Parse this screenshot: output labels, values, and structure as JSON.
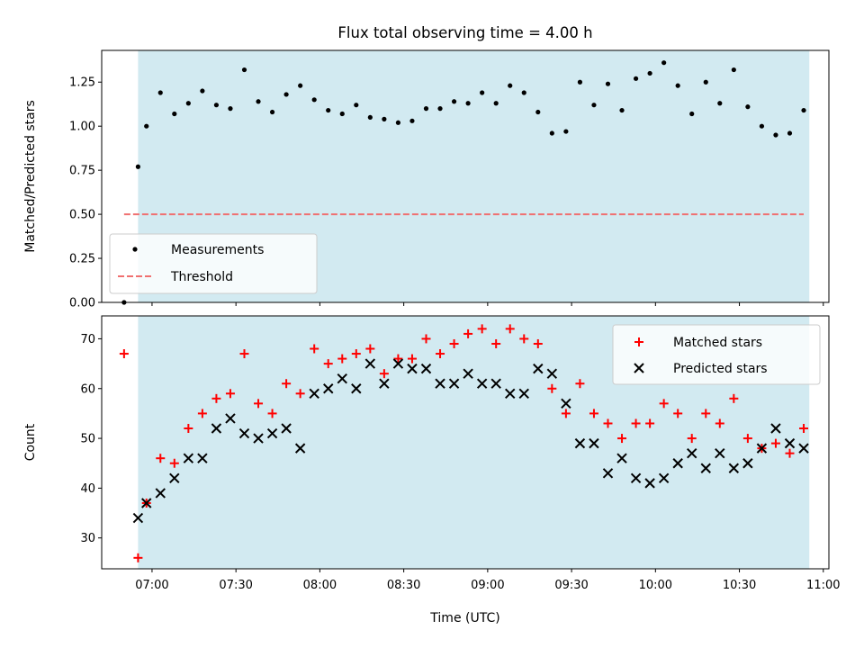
{
  "chart_data": [
    {
      "type": "scatter",
      "title": "Flux total observing time = 4.00 h",
      "ylabel": "Matched/Predicted stars",
      "xlabel": "",
      "x_unit": "hours (UTC)",
      "xlim": [
        "06:42",
        "11:02"
      ],
      "ylim": [
        0,
        1.43
      ],
      "y_ticks": [
        0,
        0.25,
        0.5,
        0.75,
        1.0,
        1.25
      ],
      "y_tick_labels": [
        "0.00",
        "0.25",
        "0.50",
        "0.75",
        "1.00",
        "1.25"
      ],
      "shaded_interval": [
        "06:55",
        "10:55"
      ],
      "shade_color": "#add8e6",
      "legend_position": "lower left",
      "series": [
        {
          "name": "Measurements",
          "marker": "dot",
          "color": "#000000",
          "x": [
            "06:50",
            "06:55",
            "06:58",
            "07:03",
            "07:08",
            "07:13",
            "07:18",
            "07:23",
            "07:28",
            "07:33",
            "07:38",
            "07:43",
            "07:48",
            "07:53",
            "07:58",
            "08:03",
            "08:08",
            "08:13",
            "08:18",
            "08:23",
            "08:28",
            "08:33",
            "08:38",
            "08:43",
            "08:48",
            "08:53",
            "08:58",
            "09:03",
            "09:08",
            "09:13",
            "09:18",
            "09:23",
            "09:28",
            "09:33",
            "09:38",
            "09:43",
            "09:48",
            "09:53",
            "09:58",
            "10:03",
            "10:08",
            "10:13",
            "10:18",
            "10:23",
            "10:28",
            "10:33",
            "10:38",
            "10:43",
            "10:48",
            "10:53"
          ],
          "y": [
            0.0,
            0.77,
            1.0,
            1.19,
            1.07,
            1.13,
            1.2,
            1.12,
            1.1,
            1.32,
            1.14,
            1.08,
            1.18,
            1.23,
            1.15,
            1.09,
            1.07,
            1.12,
            1.05,
            1.04,
            1.02,
            1.03,
            1.1,
            1.1,
            1.14,
            1.13,
            1.19,
            1.13,
            1.23,
            1.19,
            1.08,
            0.96,
            0.97,
            1.25,
            1.12,
            1.24,
            1.09,
            1.27,
            1.3,
            1.36,
            1.23,
            1.07,
            1.25,
            1.13,
            1.32,
            1.11,
            1.0,
            0.95,
            0.96,
            1.09
          ]
        },
        {
          "name": "Threshold",
          "style": "dashed",
          "color": "#f07070",
          "x": [
            "06:50",
            "10:53"
          ],
          "y": [
            0.5,
            0.5
          ]
        }
      ]
    },
    {
      "type": "scatter",
      "title": "",
      "ylabel": "Count",
      "xlabel": "Time (UTC)",
      "xlim": [
        "06:42",
        "11:02"
      ],
      "ylim": [
        23.8,
        74.6
      ],
      "y_ticks": [
        30,
        40,
        50,
        60,
        70
      ],
      "x_ticks": [
        "07:00",
        "07:30",
        "08:00",
        "08:30",
        "09:00",
        "09:30",
        "10:00",
        "10:30",
        "11:00"
      ],
      "shaded_interval": [
        "06:55",
        "10:55"
      ],
      "shade_color": "#add8e6",
      "legend_position": "upper right",
      "series": [
        {
          "name": "Matched stars",
          "marker": "plus",
          "color": "#ff0000",
          "x": [
            "06:50",
            "06:55",
            "06:58",
            "07:03",
            "07:08",
            "07:13",
            "07:18",
            "07:23",
            "07:28",
            "07:33",
            "07:38",
            "07:43",
            "07:48",
            "07:53",
            "07:58",
            "08:03",
            "08:08",
            "08:13",
            "08:18",
            "08:23",
            "08:28",
            "08:33",
            "08:38",
            "08:43",
            "08:48",
            "08:53",
            "08:58",
            "09:03",
            "09:08",
            "09:13",
            "09:18",
            "09:23",
            "09:28",
            "09:33",
            "09:38",
            "09:43",
            "09:48",
            "09:53",
            "09:58",
            "10:03",
            "10:08",
            "10:13",
            "10:18",
            "10:23",
            "10:28",
            "10:33",
            "10:38",
            "10:43",
            "10:48",
            "10:53"
          ],
          "y": [
            67,
            26,
            37,
            46,
            45,
            52,
            55,
            58,
            59,
            67,
            57,
            55,
            61,
            59,
            68,
            65,
            66,
            67,
            68,
            63,
            66,
            66,
            70,
            67,
            69,
            71,
            72,
            69,
            72,
            70,
            69,
            60,
            55,
            61,
            55,
            53,
            50,
            53,
            53,
            57,
            55,
            50,
            55,
            53,
            58,
            50,
            48,
            49,
            47,
            52
          ]
        },
        {
          "name": "Predicted stars",
          "marker": "x",
          "color": "#000000",
          "x": [
            "06:55",
            "06:58",
            "07:03",
            "07:08",
            "07:13",
            "07:18",
            "07:23",
            "07:28",
            "07:33",
            "07:38",
            "07:43",
            "07:48",
            "07:53",
            "07:58",
            "08:03",
            "08:08",
            "08:13",
            "08:18",
            "08:23",
            "08:28",
            "08:33",
            "08:38",
            "08:43",
            "08:48",
            "08:53",
            "08:58",
            "09:03",
            "09:08",
            "09:13",
            "09:18",
            "09:23",
            "09:28",
            "09:33",
            "09:38",
            "09:43",
            "09:48",
            "09:53",
            "09:58",
            "10:03",
            "10:08",
            "10:13",
            "10:18",
            "10:23",
            "10:28",
            "10:33",
            "10:38",
            "10:43",
            "10:48",
            "10:53"
          ],
          "y": [
            34,
            37,
            39,
            42,
            46,
            46,
            52,
            54,
            51,
            50,
            51,
            52,
            48,
            59,
            60,
            62,
            60,
            65,
            61,
            65,
            64,
            64,
            61,
            61,
            63,
            61,
            61,
            59,
            59,
            64,
            63,
            57,
            49,
            49,
            43,
            46,
            42,
            41,
            42,
            45,
            47,
            44,
            47,
            44,
            45,
            48,
            52,
            49,
            48
          ]
        }
      ]
    }
  ]
}
